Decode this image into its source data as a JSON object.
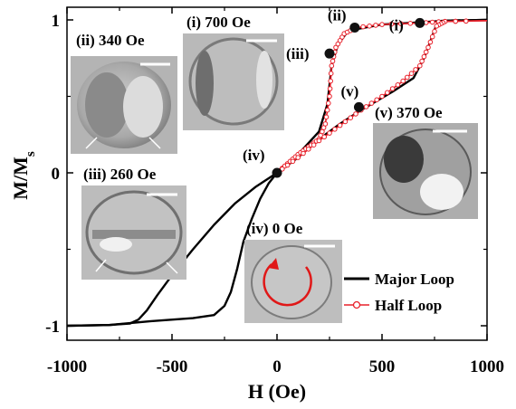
{
  "chart_data": {
    "type": "line",
    "xlabel": "H (Oe)",
    "ylabel_main": "M/M",
    "ylabel_sub": "s",
    "xlim": [
      -1000,
      1000
    ],
    "ylim": [
      -1.1,
      1.05
    ],
    "x_ticks": [
      {
        "value": -1000,
        "label": "-1000"
      },
      {
        "value": -500,
        "label": "-500"
      },
      {
        "value": 0,
        "label": "0"
      },
      {
        "value": 500,
        "label": "500"
      },
      {
        "value": 1000,
        "label": "1000"
      }
    ],
    "y_ticks": [
      {
        "value": 1,
        "label": "1"
      },
      {
        "value": 0,
        "label": "0"
      },
      {
        "value": -1,
        "label": "-1"
      }
    ],
    "legend_position": "bottom-right",
    "series": [
      {
        "name": "Major Loop",
        "color": "#000000",
        "branches": [
          [
            [
              1000,
              1.0
            ],
            [
              800,
              0.995
            ],
            [
              760,
              0.97
            ],
            [
              700,
              0.75
            ],
            [
              650,
              0.62
            ],
            [
              550,
              0.53
            ],
            [
              400,
              0.41
            ],
            [
              300,
              0.32
            ],
            [
              200,
              0.22
            ],
            [
              100,
              0.1
            ],
            [
              0,
              0.0
            ],
            [
              -100,
              -0.09
            ],
            [
              -200,
              -0.2
            ],
            [
              -300,
              -0.34
            ],
            [
              -400,
              -0.5
            ],
            [
              -500,
              -0.67
            ],
            [
              -570,
              -0.8
            ],
            [
              -620,
              -0.9
            ],
            [
              -660,
              -0.96
            ],
            [
              -700,
              -0.985
            ],
            [
              -800,
              -0.995
            ],
            [
              -1000,
              -1.0
            ]
          ],
          [
            [
              -1000,
              -1.0
            ],
            [
              -800,
              -0.995
            ],
            [
              -600,
              -0.97
            ],
            [
              -400,
              -0.95
            ],
            [
              -300,
              -0.93
            ],
            [
              -250,
              -0.87
            ],
            [
              -220,
              -0.78
            ],
            [
              -190,
              -0.63
            ],
            [
              -160,
              -0.45
            ],
            [
              -120,
              -0.3
            ],
            [
              -80,
              -0.17
            ],
            [
              -40,
              -0.07
            ],
            [
              0,
              0.0
            ],
            [
              100,
              0.12
            ],
            [
              200,
              0.27
            ],
            [
              240,
              0.45
            ],
            [
              260,
              0.7
            ],
            [
              290,
              0.84
            ],
            [
              340,
              0.93
            ],
            [
              500,
              0.97
            ],
            [
              700,
              0.985
            ],
            [
              800,
              0.995
            ],
            [
              1000,
              1.0
            ]
          ]
        ]
      },
      {
        "name": "Half Loop",
        "color": "#e8202a",
        "branches": [
          [
            [
              0,
              0.0
            ],
            [
              50,
              0.06
            ],
            [
              100,
              0.12
            ],
            [
              150,
              0.17
            ],
            [
              200,
              0.22
            ],
            [
              230,
              0.32
            ],
            [
              250,
              0.5
            ],
            [
              260,
              0.7
            ],
            [
              280,
              0.82
            ],
            [
              320,
              0.91
            ],
            [
              380,
              0.95
            ],
            [
              500,
              0.97
            ],
            [
              680,
              0.98
            ],
            [
              800,
              0.99
            ],
            [
              1000,
              0.995
            ]
          ],
          [
            [
              1000,
              0.995
            ],
            [
              800,
              0.99
            ],
            [
              760,
              0.96
            ],
            [
              720,
              0.82
            ],
            [
              680,
              0.7
            ],
            [
              600,
              0.6
            ],
            [
              500,
              0.5
            ],
            [
              400,
              0.41
            ],
            [
              300,
              0.31
            ],
            [
              200,
              0.21
            ],
            [
              100,
              0.1
            ],
            [
              0,
              0.0
            ]
          ]
        ]
      }
    ],
    "marked_points": [
      {
        "label": "(i)",
        "x": 680,
        "y": 0.98
      },
      {
        "label": "(ii)",
        "x": 370,
        "y": 0.95
      },
      {
        "label": "(iii)",
        "x": 250,
        "y": 0.78
      },
      {
        "label": "(iv)",
        "x": 0,
        "y": 0.0
      },
      {
        "label": "(v)",
        "x": 390,
        "y": 0.43
      }
    ],
    "insets": [
      {
        "label": "(ii) 340 Oe"
      },
      {
        "label": "(i) 700 Oe"
      },
      {
        "label": "(iii) 260 Oe"
      },
      {
        "label": "(v) 370 Oe"
      },
      {
        "label": "(iv) 0 Oe"
      }
    ]
  }
}
